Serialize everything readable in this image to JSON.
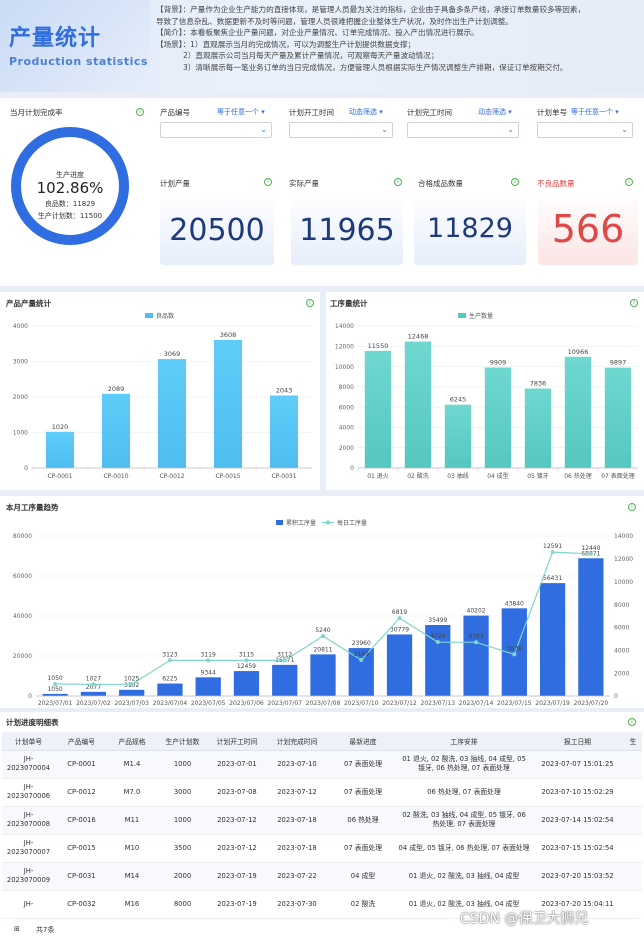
{
  "header": {
    "title_cn": "产量统计",
    "title_en": "Production statistics",
    "desc": [
      "【背景】：产量作为企业生产能力的直接体现，是管理人员最为关注的指标，企业由于具备多条产线，承接订单数量较多等因素，",
      "导致了信息杂乱、数据更新不及时等问题，管理人员很难把握企业整体生产状况，及时作出生产计划调整。",
      "【简介】：本看板聚焦企业产量问题，对企业产量情况、订单完成情况、投入产出情况进行展示。",
      "【场景】：1）直观展示当月的完成情况，可以为调整生产计划提供数据支撑；",
      "2）直观展示公司当月每天产量及累计产量情况，可观察每天产量波动情况；",
      "3）清晰展示每一笔业务订单的当日完成情况，方便管理人员根据实际生产情况调整生产排期，保证订单按期交付。"
    ]
  },
  "completion": {
    "title": "当月计划完成率",
    "progress_label": "生产进度",
    "progress_value": "102.86%",
    "good_label": "良品数：",
    "good_value": "11829",
    "plan_label": "生产计划数：",
    "plan_value": "11500",
    "fraction": 1.0286
  },
  "filters": [
    {
      "label": "产品编号",
      "mode": "等于任意一个"
    },
    {
      "label": "计划开工时间",
      "mode": "动态筛选"
    },
    {
      "label": "计划完工时间",
      "mode": "动态筛选"
    },
    {
      "label": "计划单号",
      "mode": "等于任意一个"
    }
  ],
  "kpis": [
    {
      "label": "计划产量",
      "value": "20500"
    },
    {
      "label": "实际产量",
      "value": "11965"
    },
    {
      "label": "合格成品数量",
      "value": "11829"
    },
    {
      "label": "不良品数量",
      "value": "566"
    }
  ],
  "colors": {
    "primary": "#2f6de0",
    "cyan": "#4fc4f2",
    "teal": "#55cfc4",
    "danger": "#e53e3e",
    "line": "#7fd6cf"
  },
  "chart_data": [
    {
      "type": "bar",
      "title": "产品产量统计",
      "legend": [
        "良品数"
      ],
      "categories": [
        "CP-0001",
        "CP-0010",
        "CP-0012",
        "CP-0015",
        "CP-0031"
      ],
      "values": [
        1020,
        2089,
        3069,
        3608,
        2043
      ],
      "ylim": [
        0,
        4000
      ],
      "yticks": [
        0,
        1000,
        2000,
        3000,
        4000
      ]
    },
    {
      "type": "bar",
      "title": "工序量统计",
      "legend": [
        "生产数量"
      ],
      "categories": [
        "01 退火",
        "02 酸洗",
        "03 抽线",
        "04 成型",
        "05 镀牙",
        "06 热处理",
        "07 表面处理"
      ],
      "values": [
        11550,
        12468,
        6245,
        9909,
        7836,
        10966,
        9897
      ],
      "ylim": [
        0,
        14000
      ],
      "yticks": [
        0,
        2000,
        4000,
        6000,
        8000,
        10000,
        12000,
        14000
      ]
    },
    {
      "type": "bar+line",
      "title": "本月工序量趋势",
      "legend": [
        "累积工序量",
        "每日工序量"
      ],
      "categories": [
        "2023/07/01",
        "2023/07/02",
        "2023/07/03",
        "2023/07/04",
        "2023/07/05",
        "2023/07/06",
        "2023/07/07",
        "2023/07/08",
        "2023/07/10",
        "2023/07/12",
        "2023/07/13",
        "2023/07/14",
        "2023/07/15",
        "2023/07/19",
        "2023/07/20"
      ],
      "series": [
        {
          "name": "累积工序量",
          "type": "bar",
          "values": [
            1050,
            2077,
            3102,
            6225,
            9344,
            12459,
            15571,
            20811,
            23960,
            30779,
            35499,
            40202,
            43840,
            56431,
            68871
          ]
        },
        {
          "name": "每日工序量",
          "type": "line",
          "values": [
            1050,
            1027,
            1025,
            3123,
            3119,
            3115,
            3112,
            5240,
            3149,
            6819,
            4720,
            4703,
            3638,
            12591,
            12440
          ]
        }
      ],
      "ylim_left": [
        0,
        80000
      ],
      "yticks_left": [
        0,
        20000,
        40000,
        60000,
        80000
      ],
      "ylim_right": [
        0,
        14000
      ],
      "yticks_right": [
        0,
        2000,
        4000,
        6000,
        8000,
        10000,
        12000,
        14000
      ]
    }
  ],
  "table": {
    "title": "计划进度明细表",
    "columns": [
      "计划单号",
      "产品编号",
      "产品规格",
      "生产计划数",
      "计划开工时间",
      "计划完成时间",
      "最新进度",
      "工序安排",
      "报工日期",
      "生"
    ],
    "rows": [
      [
        "JH-2023070004",
        "CP-0001",
        "M1.4",
        "1000",
        "2023-07-01",
        "2023-07-10",
        "07 表面处理",
        "01 退火, 02 酸洗, 03 抽线, 04 成型, 05 镀牙, 06 热处理, 07 表面处理",
        "2023-07-07 15:01:25",
        ""
      ],
      [
        "JH-2023070006",
        "CP-0012",
        "M7.0",
        "3000",
        "2023-07-08",
        "2023-07-12",
        "07 表面处理",
        "06 热处理, 07 表面处理",
        "2023-07-10 15:02:29",
        ""
      ],
      [
        "JH-2023070008",
        "CP-0016",
        "M11",
        "1000",
        "2023-07-12",
        "2023-07-18",
        "06 热处理",
        "02 酸洗, 03 抽线, 04 成型, 05 镀牙, 06 热处理, 07 表面处理",
        "2023-07-14 15:02:54",
        ""
      ],
      [
        "JH-2023070007",
        "CP-0015",
        "M10",
        "3500",
        "2023-07-12",
        "2023-07-18",
        "07 表面处理",
        "04 成型, 05 镀牙, 06 热处理, 07 表面处理",
        "2023-07-15 15:02:54",
        ""
      ],
      [
        "JH-2023070009",
        "CP-0031",
        "M14",
        "2000",
        "2023-07-19",
        "2023-07-22",
        "04 成型",
        "01 退火, 02 酸洗, 03 抽线, 04 成型",
        "2023-07-20 15:03:52",
        ""
      ],
      [
        "JH-",
        "CP-0032",
        "M16",
        "8000",
        "2023-07-19",
        "2023-07-30",
        "02 酸洗",
        "01 退火, 02 酸洗, 03 抽线, 04 成型",
        "2023-07-20 15:04:11",
        ""
      ]
    ],
    "footer": "共7条"
  },
  "watermark": "CSDN @保卫大狮兄"
}
